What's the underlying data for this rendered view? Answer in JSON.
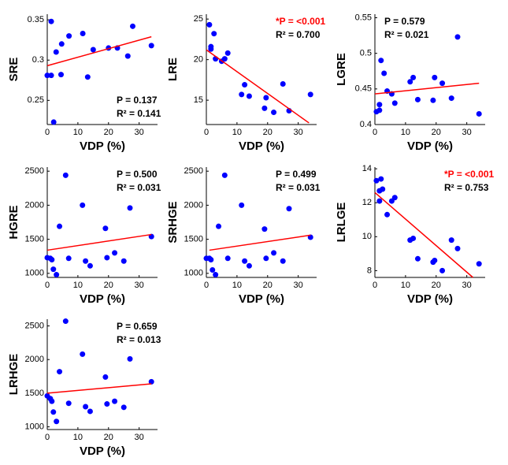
{
  "chart_data": [
    {
      "type": "scatter",
      "xlabel": "VDP (%)",
      "ylabel": "SRE",
      "color": "#0000ff",
      "x": [
        1.3,
        2.9,
        4.7,
        7.1,
        11.6,
        15,
        20,
        22.9,
        27.9,
        26.3,
        34,
        0,
        1.3,
        4.5,
        13.2,
        2.1
      ],
      "values": [
        0.348,
        0.31,
        0.32,
        0.33,
        0.333,
        0.313,
        0.315,
        0.315,
        0.342,
        0.305,
        0.318,
        0.281,
        0.281,
        0.282,
        0.279,
        0.223
      ],
      "fit": {
        "x": [
          0,
          34
        ],
        "values": [
          0.293,
          0.329
        ],
        "color": "#ff0000"
      },
      "xlim": [
        0,
        36
      ],
      "ylim": [
        0.22,
        0.357
      ],
      "xticks": [
        0,
        10,
        20,
        30
      ],
      "yticks": [
        0.25,
        0.3,
        0.35
      ],
      "annotation_corner": "lower right",
      "annotations": [
        {
          "text": "P = 0.137",
          "color": "#000000"
        },
        {
          "text": "R² = 0.141",
          "color": "#000000"
        }
      ]
    },
    {
      "type": "scatter",
      "xlabel": "VDP (%)",
      "ylabel": "LRE",
      "color": "#0000ff",
      "x": [
        1,
        1.5,
        1.5,
        2.5,
        3,
        5,
        6,
        7,
        11.5,
        12.5,
        14,
        19,
        19.5,
        22,
        25,
        27,
        34
      ],
      "values": [
        24.3,
        21.6,
        21.3,
        23.2,
        20.1,
        19.8,
        20.1,
        20.8,
        15.7,
        16.9,
        15.5,
        14,
        15.3,
        13.5,
        17,
        13.7,
        15.7
      ],
      "fit": {
        "x": [
          0,
          33.5
        ],
        "values": [
          21.2,
          12.2
        ],
        "color": "#ff0000"
      },
      "xlim": [
        0,
        36
      ],
      "ylim": [
        12,
        25.6
      ],
      "xticks": [
        0,
        10,
        20,
        30
      ],
      "yticks": [
        15,
        20,
        25
      ],
      "annotation_corner": "upper right",
      "annotations": [
        {
          "text": "*P = <0.001",
          "color": "#ff0000"
        },
        {
          "text": "R² = 0.700",
          "color": "#000000"
        }
      ]
    },
    {
      "type": "scatter",
      "xlabel": "VDP (%)",
      "ylabel": "LGRE",
      "color": "#0000ff",
      "x": [
        0.5,
        1.5,
        1.5,
        2,
        3,
        4,
        5.5,
        6.5,
        11.5,
        12.5,
        14,
        19,
        19.5,
        22,
        25,
        27,
        34
      ],
      "values": [
        0.418,
        0.42,
        0.428,
        0.49,
        0.472,
        0.447,
        0.443,
        0.43,
        0.46,
        0.466,
        0.435,
        0.434,
        0.466,
        0.458,
        0.437,
        0.523,
        0.415
      ],
      "fit": {
        "x": [
          0,
          34
        ],
        "values": [
          0.443,
          0.458
        ],
        "color": "#ff0000"
      },
      "xlim": [
        0,
        36
      ],
      "ylim": [
        0.4,
        0.555
      ],
      "xticks": [
        0,
        10,
        20,
        30
      ],
      "yticks": [
        0.4,
        0.45,
        0.5,
        0.55
      ],
      "annotation_corner": "upper left",
      "annotations": [
        {
          "text": "P = 0.579",
          "color": "#000000"
        },
        {
          "text": "R² = 0.021",
          "color": "#000000"
        }
      ]
    },
    {
      "type": "scatter",
      "xlabel": "VDP (%)",
      "ylabel": "HGRE",
      "color": "#0000ff",
      "x": [
        0,
        1,
        1.5,
        2,
        3,
        4,
        6,
        7,
        11.5,
        12.5,
        14,
        19,
        19.5,
        22,
        25,
        27,
        34
      ],
      "values": [
        1230,
        1220,
        1200,
        1060,
        980,
        1690,
        2440,
        1220,
        2000,
        1180,
        1110,
        1660,
        1230,
        1300,
        1180,
        1960,
        1540
      ],
      "fit": {
        "x": [
          0,
          34
        ],
        "values": [
          1340,
          1570
        ],
        "color": "#ff0000"
      },
      "xlim": [
        0,
        36
      ],
      "ylim": [
        940,
        2560
      ],
      "xticks": [
        0,
        10,
        20,
        30
      ],
      "yticks": [
        1000,
        1500,
        2000,
        2500
      ],
      "annotation_corner": "upper right",
      "annotations": [
        {
          "text": "P = 0.500",
          "color": "#000000"
        },
        {
          "text": "R² = 0.031",
          "color": "#000000"
        }
      ]
    },
    {
      "type": "scatter",
      "xlabel": "VDP (%)",
      "ylabel": "SRHGE",
      "color": "#0000ff",
      "x": [
        0,
        1,
        1.5,
        2,
        3,
        4,
        6,
        7,
        11.5,
        12.5,
        14,
        19,
        19.5,
        22,
        25,
        27,
        34
      ],
      "values": [
        1220,
        1220,
        1200,
        1050,
        980,
        1690,
        2440,
        1220,
        2000,
        1180,
        1110,
        1650,
        1220,
        1300,
        1180,
        1950,
        1530
      ],
      "fit": {
        "x": [
          1,
          34
        ],
        "values": [
          1340,
          1560
        ],
        "color": "#ff0000"
      },
      "xlim": [
        0,
        36
      ],
      "ylim": [
        940,
        2560
      ],
      "xticks": [
        0,
        10,
        20,
        30
      ],
      "yticks": [
        1000,
        1500,
        2000,
        2500
      ],
      "annotation_corner": "upper right",
      "annotations": [
        {
          "text": "P = 0.499",
          "color": "#000000"
        },
        {
          "text": "R² = 0.031",
          "color": "#000000"
        }
      ]
    },
    {
      "type": "scatter",
      "xlabel": "VDP (%)",
      "ylabel": "LRLGE",
      "color": "#0000ff",
      "x": [
        0.5,
        1.5,
        2,
        2.5,
        1.5,
        4,
        5.5,
        6.5,
        11.5,
        12.5,
        14,
        19,
        19.5,
        22,
        25,
        27,
        34
      ],
      "values": [
        13.3,
        12.7,
        13.4,
        12.8,
        12.1,
        11.3,
        12.1,
        12.3,
        9.8,
        9.9,
        8.7,
        8.5,
        8.6,
        8,
        9.8,
        9.3,
        8.4
      ],
      "fit": {
        "x": [
          0,
          32
        ],
        "values": [
          12.6,
          7.6
        ],
        "color": "#ff0000"
      },
      "xlim": [
        0,
        36
      ],
      "ylim": [
        7.6,
        14.1
      ],
      "xticks": [
        0,
        10,
        20,
        30
      ],
      "yticks": [
        8,
        10,
        12,
        14
      ],
      "annotation_corner": "upper right",
      "annotations": [
        {
          "text": "*P = <0.001",
          "color": "#ff0000"
        },
        {
          "text": "R² = 0.753",
          "color": "#000000"
        }
      ]
    },
    {
      "type": "scatter",
      "xlabel": "VDP (%)",
      "ylabel": "LRHGE",
      "color": "#0000ff",
      "x": [
        0,
        1,
        1.5,
        2,
        3,
        4,
        6,
        7,
        11.5,
        12.5,
        14,
        19,
        19.5,
        22,
        25,
        27,
        34
      ],
      "values": [
        1460,
        1420,
        1380,
        1220,
        1080,
        1820,
        2570,
        1350,
        2080,
        1300,
        1230,
        1740,
        1340,
        1380,
        1290,
        2010,
        1670
      ],
      "fit": {
        "x": [
          0,
          34
        ],
        "values": [
          1500,
          1640
        ],
        "color": "#ff0000"
      },
      "xlim": [
        0,
        36
      ],
      "ylim": [
        960,
        2600
      ],
      "xticks": [
        0,
        10,
        20,
        30
      ],
      "yticks": [
        1000,
        1500,
        2000,
        2500
      ],
      "annotation_corner": "upper right",
      "annotations": [
        {
          "text": "P = 0.659",
          "color": "#000000"
        },
        {
          "text": "R² = 0.013",
          "color": "#000000"
        }
      ]
    }
  ]
}
